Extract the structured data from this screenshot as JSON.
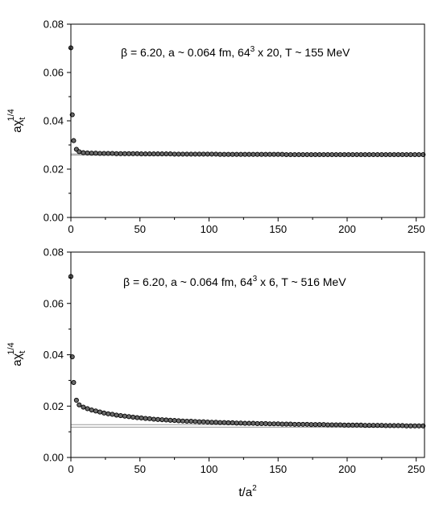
{
  "chart_data": [
    {
      "type": "scatter",
      "annotation": {
        "beta": "β = 6.20, a ~ 0.064 fm, 64",
        "sup": "3",
        "rest": " x 20, T ~ 155 MeV"
      },
      "ylabel": {
        "main": "aχ",
        "sub": "t",
        "sup": "1/4"
      },
      "xlabel": "",
      "xlim": [
        0,
        256
      ],
      "ylim": [
        0,
        0.08
      ],
      "xticks": [
        "0",
        "50",
        "100",
        "150",
        "200",
        "250"
      ],
      "yticks": [
        "0.00",
        "0.02",
        "0.04",
        "0.06",
        "0.08"
      ],
      "grid": false,
      "bands": [
        0.0258,
        0.0263
      ],
      "series": [
        {
          "x": [
            0,
            1,
            2,
            4,
            6,
            9,
            12,
            15,
            18,
            21,
            24,
            27,
            30,
            33,
            36,
            39,
            42,
            45,
            48,
            51,
            54,
            57,
            60,
            63,
            66,
            69,
            72,
            75,
            78,
            81,
            84,
            87,
            90,
            93,
            96,
            99,
            102,
            105,
            108,
            111,
            114,
            117,
            120,
            123,
            126,
            129,
            132,
            135,
            138,
            141,
            144,
            147,
            150,
            153,
            156,
            159,
            162,
            165,
            168,
            171,
            174,
            177,
            180,
            183,
            186,
            189,
            192,
            195,
            198,
            201,
            204,
            207,
            210,
            213,
            216,
            219,
            222,
            225,
            228,
            231,
            234,
            237,
            240,
            243,
            246,
            249,
            252,
            255
          ],
          "y": [
            0.0702,
            0.0425,
            0.0318,
            0.0282,
            0.0272,
            0.0268,
            0.0267,
            0.0266,
            0.0266,
            0.0265,
            0.0265,
            0.0265,
            0.0265,
            0.0264,
            0.0264,
            0.0264,
            0.0264,
            0.0264,
            0.0264,
            0.0263,
            0.0263,
            0.0263,
            0.0263,
            0.0263,
            0.0263,
            0.0263,
            0.0263,
            0.0262,
            0.0262,
            0.0262,
            0.0262,
            0.0262,
            0.0262,
            0.0262,
            0.0262,
            0.0262,
            0.0262,
            0.0262,
            0.0261,
            0.0261,
            0.0261,
            0.0261,
            0.0261,
            0.0261,
            0.0261,
            0.0261,
            0.0261,
            0.0261,
            0.0261,
            0.0261,
            0.0261,
            0.0261,
            0.0261,
            0.0261,
            0.026,
            0.026,
            0.026,
            0.026,
            0.026,
            0.026,
            0.026,
            0.026,
            0.026,
            0.026,
            0.026,
            0.026,
            0.026,
            0.026,
            0.026,
            0.026,
            0.026,
            0.026,
            0.026,
            0.026,
            0.026,
            0.026,
            0.026,
            0.026,
            0.026,
            0.026,
            0.026,
            0.026,
            0.026,
            0.026,
            0.026,
            0.026,
            0.026,
            0.026
          ]
        }
      ]
    },
    {
      "type": "scatter",
      "annotation": {
        "beta": "β = 6.20, a ~ 0.064 fm, 64",
        "sup": "3",
        "rest": " x 6, T ~ 516 MeV"
      },
      "ylabel": {
        "main": "aχ",
        "sub": "t",
        "sup": "1/4"
      },
      "xlabel": "t/a",
      "xlabel_sup": "2",
      "xlim": [
        0,
        256
      ],
      "ylim": [
        0,
        0.08
      ],
      "xticks": [
        "0",
        "50",
        "100",
        "150",
        "200",
        "250"
      ],
      "yticks": [
        "0.00",
        "0.02",
        "0.04",
        "0.06",
        "0.08"
      ],
      "grid": false,
      "bands": [
        0.0118,
        0.0128
      ],
      "series": [
        {
          "x": [
            0,
            1,
            2,
            4,
            6,
            9,
            12,
            15,
            18,
            21,
            24,
            27,
            30,
            33,
            36,
            39,
            42,
            45,
            48,
            51,
            54,
            57,
            60,
            63,
            66,
            69,
            72,
            75,
            78,
            81,
            84,
            87,
            90,
            93,
            96,
            99,
            102,
            105,
            108,
            111,
            114,
            117,
            120,
            123,
            126,
            129,
            132,
            135,
            138,
            141,
            144,
            147,
            150,
            153,
            156,
            159,
            162,
            165,
            168,
            171,
            174,
            177,
            180,
            183,
            186,
            189,
            192,
            195,
            198,
            201,
            204,
            207,
            210,
            213,
            216,
            219,
            222,
            225,
            228,
            231,
            234,
            237,
            240,
            243,
            246,
            249,
            252,
            255
          ],
          "y": [
            0.0705,
            0.0392,
            0.0292,
            0.0223,
            0.0205,
            0.0196,
            0.019,
            0.0185,
            0.0181,
            0.0177,
            0.0173,
            0.017,
            0.0168,
            0.0165,
            0.0163,
            0.0161,
            0.0159,
            0.0157,
            0.0155,
            0.0154,
            0.0152,
            0.0151,
            0.0149,
            0.0148,
            0.0147,
            0.0146,
            0.0145,
            0.0144,
            0.0143,
            0.0142,
            0.0141,
            0.0141,
            0.014,
            0.0139,
            0.0139,
            0.0138,
            0.0137,
            0.0137,
            0.0136,
            0.0136,
            0.0135,
            0.0135,
            0.0134,
            0.0134,
            0.0133,
            0.0133,
            0.0133,
            0.0132,
            0.0132,
            0.0132,
            0.0131,
            0.0131,
            0.0131,
            0.013,
            0.013,
            0.013,
            0.0129,
            0.0129,
            0.0129,
            0.0129,
            0.0128,
            0.0128,
            0.0128,
            0.0128,
            0.0127,
            0.0127,
            0.0127,
            0.0127,
            0.0126,
            0.0126,
            0.0126,
            0.0126,
            0.0126,
            0.0125,
            0.0125,
            0.0125,
            0.0125,
            0.0125,
            0.0124,
            0.0124,
            0.0124,
            0.0124,
            0.0124,
            0.0123,
            0.0123,
            0.0123,
            0.0123,
            0.0123
          ]
        }
      ]
    }
  ]
}
